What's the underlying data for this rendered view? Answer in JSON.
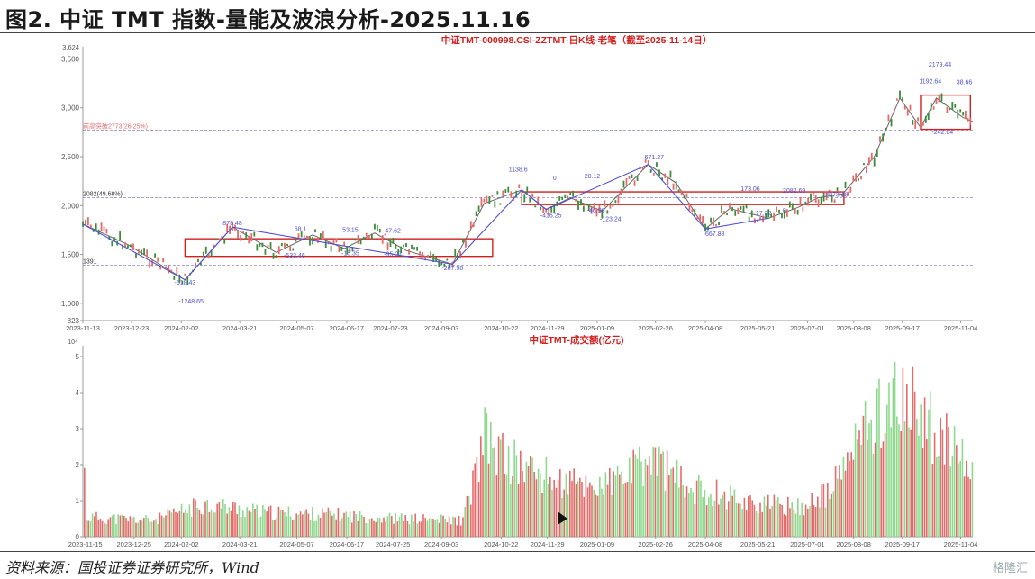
{
  "title": "图2. 中证 TMT 指数-量能及波浪分析-2025.11.16",
  "source": "资料来源：国投证券证券研究所，Wind",
  "watermark": "格隆汇",
  "colors": {
    "up": "#e56b6b",
    "down": "#8fd98f",
    "accent": "#d02020",
    "wave": "#5050d0",
    "ref": "#8888cc"
  },
  "chart_data": [
    {
      "type": "line",
      "title": "中证TMT-000998.CSI-ZZTMT-日K线-老笔（截至2025-11-14日）",
      "y_ticks": [
        "3,500",
        "3,000",
        "2,500",
        "2,000",
        "1,500",
        "1,000",
        "823"
      ],
      "y_top_label": "3,624",
      "ylim": [
        823,
        3624
      ],
      "x_ticks": [
        "2023-11-13",
        "2023-12-23",
        "2024-02-02",
        "2024-03-21",
        "2024-05-07",
        "2024-06-17",
        "2024-07-23",
        "2024-09-03",
        "2024-10-22",
        "2024-11-29",
        "2025-01-09",
        "2025-02-26",
        "2025-04-08",
        "2025-05-21",
        "2025-07-01",
        "2025-08-08",
        "2025-09-17",
        "2025-11-04"
      ],
      "x": [
        "2023-11-13",
        "2023-12-20",
        "2024-02-05",
        "2024-03-15",
        "2024-04-20",
        "2024-05-20",
        "2024-06-15",
        "2024-07-10",
        "2024-08-05",
        "2024-09-12",
        "2024-10-08",
        "2024-11-08",
        "2024-11-28",
        "2024-12-18",
        "2025-01-13",
        "2025-02-20",
        "2025-03-15",
        "2025-04-08",
        "2025-04-28",
        "2025-05-30",
        "2025-06-23",
        "2025-07-10",
        "2025-07-30",
        "2025-08-25",
        "2025-09-15",
        "2025-10-02",
        "2025-10-15",
        "2025-11-06",
        "2025-11-14"
      ],
      "close": [
        1810,
        1600,
        1240,
        1780,
        1520,
        1700,
        1560,
        1720,
        1540,
        1400,
        2020,
        2160,
        1960,
        2080,
        1940,
        2420,
        2230,
        1760,
        1970,
        1870,
        1980,
        2080,
        2120,
        2500,
        3100,
        2800,
        3100,
        2900,
        2860
      ],
      "ref_lines": [
        {
          "label": "2082(49.68%)",
          "value": 2082
        },
        {
          "label": "1391",
          "value": 1391
        },
        {
          "label": "前高突破2773(26.25%)",
          "value": 2773
        }
      ],
      "boxes": [
        {
          "x0": "2024-02-05",
          "x1": "2024-10-15",
          "y0": 1480,
          "y1": 1660
        },
        {
          "x0": "2024-11-08",
          "x1": "2025-07-31",
          "y0": 2010,
          "y1": 2140
        },
        {
          "x0": "2025-10-02",
          "x1": "2025-11-12",
          "y0": 2780,
          "y1": 3130
        }
      ],
      "annotations": [
        {
          "text": "878.48",
          "x": "2024-03-15",
          "y": 1800
        },
        {
          "text": "68.1",
          "x": "2024-05-10",
          "y": 1740
        },
        {
          "text": "53.15",
          "x": "2024-06-20",
          "y": 1730
        },
        {
          "text": "47.62",
          "x": "2024-07-25",
          "y": 1720
        },
        {
          "text": "-15.35",
          "x": "2024-06-20",
          "y": 1490
        },
        {
          "text": "-95.07",
          "x": "2024-07-25",
          "y": 1480
        },
        {
          "text": "-533.46",
          "x": "2024-05-05",
          "y": 1470
        },
        {
          "text": "-518.43",
          "x": "2024-02-05",
          "y": 1190
        },
        {
          "text": "-1248.65",
          "x": "2024-02-10",
          "y": 1000
        },
        {
          "text": "-267.56",
          "x": "2024-09-12",
          "y": 1340
        },
        {
          "text": "1138.6",
          "x": "2024-11-05",
          "y": 2350
        },
        {
          "text": "0",
          "x": "2024-12-05",
          "y": 2260
        },
        {
          "text": "20.12",
          "x": "2025-01-05",
          "y": 2280
        },
        {
          "text": "-416.25",
          "x": "2024-12-02",
          "y": 1880
        },
        {
          "text": "-46.96",
          "x": "2025-01-08",
          "y": 1930
        },
        {
          "text": "-123.24",
          "x": "2025-01-20",
          "y": 1840
        },
        {
          "text": "671.27",
          "x": "2025-02-25",
          "y": 2470
        },
        {
          "text": "-667.88",
          "x": "2025-04-15",
          "y": 1690
        },
        {
          "text": "173.06",
          "x": "2025-05-15",
          "y": 2150
        },
        {
          "text": "-17.32",
          "x": "2025-05-25",
          "y": 1900
        },
        {
          "text": "0",
          "x": "2025-06-12",
          "y": 1930
        },
        {
          "text": "2082.69",
          "x": "2025-06-20",
          "y": 2130
        },
        {
          "text": "2073.48",
          "x": "2025-07-25",
          "y": 2090
        },
        {
          "text": "1192.64",
          "x": "2025-10-10",
          "y": 3250
        },
        {
          "text": "38.66",
          "x": "2025-11-07",
          "y": 3240
        },
        {
          "text": "2179.44",
          "x": "2025-10-18",
          "y": 3420
        },
        {
          "text": "-242.64",
          "x": "2025-10-20",
          "y": 2730
        }
      ]
    },
    {
      "type": "bar",
      "title": "中证TMT-成交额(亿元)",
      "y_unit": "10⁴",
      "y_ticks": [
        "5",
        "4",
        "3",
        "2",
        "1",
        "0"
      ],
      "ylim": [
        0,
        5.3
      ],
      "x_ticks": [
        "2023-11-15",
        "2023-12-25",
        "2024-02-02",
        "2024-03-21",
        "2024-05-07",
        "2024-06-17",
        "2024-07-25",
        "2024-09-03",
        "2024-10-22",
        "2024-11-29",
        "2025-01-09",
        "2025-02-26",
        "2025-04-08",
        "2025-05-21",
        "2025-07-01",
        "2025-08-08",
        "2025-09-17",
        "2025-11-04"
      ],
      "envelope_x": [
        "2023-11-15",
        "2024-01-10",
        "2024-02-20",
        "2024-04-10",
        "2024-06-01",
        "2024-08-01",
        "2024-09-20",
        "2024-10-08",
        "2024-10-25",
        "2024-12-10",
        "2025-01-15",
        "2025-02-25",
        "2025-03-25",
        "2025-04-15",
        "2025-05-20",
        "2025-06-25",
        "2025-07-20",
        "2025-08-10",
        "2025-09-05",
        "2025-10-01",
        "2025-10-25",
        "2025-11-14"
      ],
      "envelope_y": [
        0.65,
        0.55,
        1.1,
        0.8,
        0.75,
        0.6,
        0.55,
        3.3,
        2.6,
        1.8,
        1.7,
        2.6,
        1.6,
        1.5,
        1.1,
        1.0,
        1.5,
        3.2,
        4.6,
        4.2,
        3.0,
        2.1
      ]
    }
  ]
}
